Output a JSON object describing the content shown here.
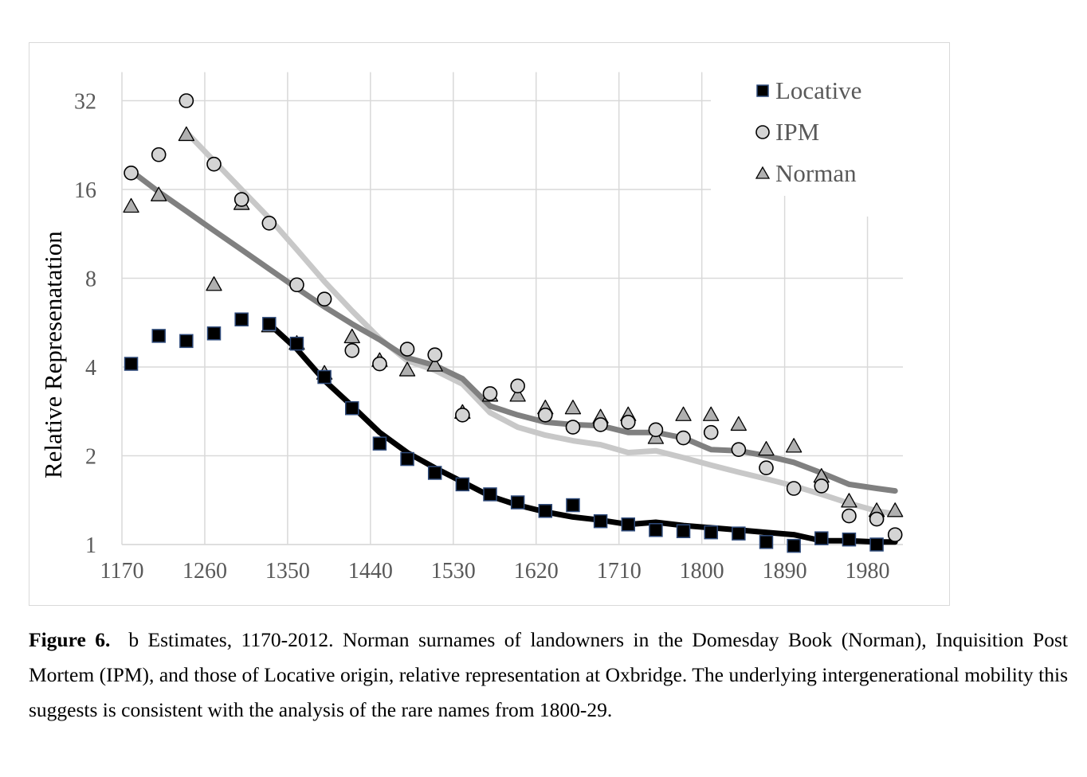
{
  "chart_data": {
    "type": "scatter",
    "title": "",
    "xlabel": "",
    "ylabel": "Relative Represenatation",
    "xlim": [
      1170,
      2012
    ],
    "ylim": [
      1,
      40
    ],
    "yscale": "log2",
    "x_ticks": [
      "1170",
      "1260",
      "1350",
      "1440",
      "1530",
      "1620",
      "1710",
      "1800",
      "1890",
      "1980"
    ],
    "y_ticks": [
      "1",
      "2",
      "4",
      "8",
      "16",
      "32"
    ],
    "legend_position": "top-right",
    "colors": {
      "locative": "#000000",
      "locative_edge": "#2e4a7a",
      "ipm": "#d4d4d4",
      "norman": "#b0b0b0",
      "ipm_line": "#c8c8c8",
      "norman_line": "#808080",
      "locative_line": "#000000",
      "grid": "#d9d9d9"
    },
    "series": [
      {
        "name": "Locative",
        "marker": "square",
        "x": [
          1180,
          1210,
          1240,
          1270,
          1300,
          1330,
          1360,
          1390,
          1420,
          1450,
          1480,
          1510,
          1540,
          1570,
          1600,
          1630,
          1660,
          1690,
          1720,
          1750,
          1780,
          1810,
          1840,
          1870,
          1900,
          1930,
          1960,
          1990
        ],
        "y": [
          4.1,
          5.1,
          4.9,
          5.2,
          5.8,
          5.6,
          4.8,
          3.7,
          2.9,
          2.2,
          1.95,
          1.75,
          1.6,
          1.48,
          1.39,
          1.3,
          1.36,
          1.2,
          1.17,
          1.12,
          1.11,
          1.1,
          1.09,
          1.02,
          0.99,
          1.05,
          1.04,
          1.0
        ]
      },
      {
        "name": "IPM",
        "marker": "circle",
        "x": [
          1180,
          1210,
          1240,
          1270,
          1300,
          1330,
          1360,
          1390,
          1420,
          1450,
          1480,
          1510,
          1540,
          1570,
          1600,
          1630,
          1660,
          1690,
          1720,
          1750,
          1780,
          1810,
          1840,
          1870,
          1900,
          1930,
          1960,
          1990,
          2010
        ],
        "y": [
          18.2,
          21.0,
          32.0,
          19.5,
          14.8,
          12.3,
          7.6,
          6.8,
          4.55,
          4.1,
          4.6,
          4.4,
          2.75,
          3.25,
          3.45,
          2.75,
          2.5,
          2.55,
          2.6,
          2.45,
          2.3,
          2.4,
          2.1,
          1.82,
          1.55,
          1.58,
          1.25,
          1.22,
          1.08
        ]
      },
      {
        "name": "Norman",
        "marker": "triangle",
        "x": [
          1180,
          1210,
          1240,
          1270,
          1300,
          1330,
          1360,
          1390,
          1420,
          1450,
          1480,
          1510,
          1540,
          1570,
          1600,
          1630,
          1660,
          1690,
          1720,
          1750,
          1780,
          1810,
          1840,
          1870,
          1900,
          1930,
          1960,
          1990,
          2010
        ],
        "y": [
          14.0,
          15.3,
          24.5,
          7.6,
          14.3,
          5.5,
          4.8,
          3.8,
          5.05,
          4.2,
          3.9,
          4.05,
          2.8,
          3.2,
          3.2,
          2.9,
          2.9,
          2.7,
          2.75,
          2.3,
          2.75,
          2.75,
          2.55,
          2.1,
          2.15,
          1.7,
          1.4,
          1.3,
          1.3
        ]
      }
    ],
    "trend_lines": [
      {
        "name": "IPM trend",
        "x": [
          1240,
          1270,
          1300,
          1330,
          1360,
          1390,
          1420,
          1450,
          1480,
          1510,
          1540,
          1570,
          1600,
          1630,
          1660,
          1690,
          1720,
          1750,
          1780,
          1810,
          1840,
          1870,
          1900,
          1930,
          1960,
          1990,
          2010
        ],
        "y": [
          25.0,
          20.0,
          16.0,
          12.8,
          10.0,
          7.8,
          6.2,
          5.0,
          4.2,
          3.9,
          3.5,
          2.8,
          2.5,
          2.35,
          2.25,
          2.18,
          2.05,
          2.08,
          1.97,
          1.86,
          1.76,
          1.67,
          1.58,
          1.48,
          1.38,
          1.3,
          1.27
        ]
      },
      {
        "name": "Norman trend",
        "x": [
          1180,
          1210,
          1240,
          1270,
          1300,
          1330,
          1360,
          1390,
          1420,
          1450,
          1480,
          1510,
          1540,
          1570,
          1600,
          1630,
          1660,
          1690,
          1720,
          1750,
          1780,
          1810,
          1840,
          1870,
          1900,
          1930,
          1960,
          1990,
          2010
        ],
        "y": [
          18.5,
          15.7,
          13.5,
          11.6,
          10.0,
          8.6,
          7.4,
          6.4,
          5.6,
          4.95,
          4.3,
          4.05,
          3.65,
          2.95,
          2.75,
          2.6,
          2.55,
          2.53,
          2.4,
          2.4,
          2.3,
          2.1,
          2.08,
          2.0,
          1.9,
          1.75,
          1.6,
          1.55,
          1.52
        ]
      },
      {
        "name": "Locative trend",
        "x": [
          1330,
          1360,
          1390,
          1420,
          1450,
          1480,
          1510,
          1540,
          1570,
          1600,
          1630,
          1660,
          1690,
          1720,
          1750,
          1780,
          1810,
          1840,
          1870,
          1900,
          1930,
          1960,
          1990,
          2010
        ],
        "y": [
          5.6,
          4.6,
          3.6,
          2.95,
          2.4,
          2.05,
          1.82,
          1.63,
          1.46,
          1.36,
          1.29,
          1.24,
          1.21,
          1.17,
          1.19,
          1.16,
          1.14,
          1.12,
          1.1,
          1.08,
          1.03,
          1.03,
          1.02,
          1.02
        ]
      }
    ]
  },
  "caption": {
    "label": "Figure 6.",
    "text": "b Estimates, 1170-2012. Norman surnames of landowners in the Domesday Book (Norman), Inquisition Post Mortem (IPM), and those of Locative origin, relative representation at Oxbridge. The underlying intergenerational mobility this suggests is consistent with the analysis of the rare names from 1800-29."
  }
}
